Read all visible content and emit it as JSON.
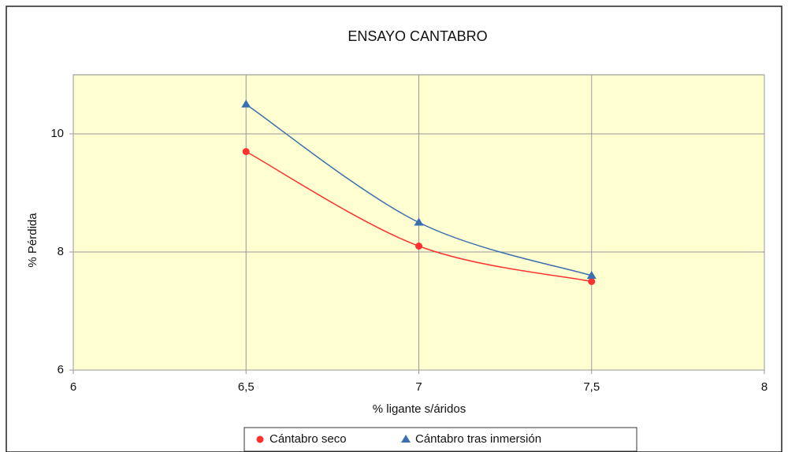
{
  "chart_data": {
    "type": "line",
    "title": "ENSAYO CANTABRO",
    "x_label": "% ligante s/áridos",
    "y_label": "% Pérdida",
    "x": [
      6.5,
      7,
      7.5
    ],
    "series": [
      {
        "name": "Cántabro seco",
        "color": "#ff3030",
        "marker": "circle",
        "values": [
          9.7,
          8.1,
          7.5
        ]
      },
      {
        "name": "Cántabro tras inmersión",
        "color": "#3a6fb0",
        "marker": "triangle",
        "values": [
          10.5,
          8.5,
          7.6
        ]
      }
    ],
    "xlim": [
      6,
      8
    ],
    "xticks": [
      6,
      {
        "value": 6.5,
        "label": "6,5"
      },
      7,
      {
        "value": 7.5,
        "label": "7,5"
      },
      8
    ],
    "ylim": [
      6,
      11
    ],
    "yticks": [
      6,
      8,
      10
    ],
    "grid": true,
    "legend": "bottom"
  }
}
